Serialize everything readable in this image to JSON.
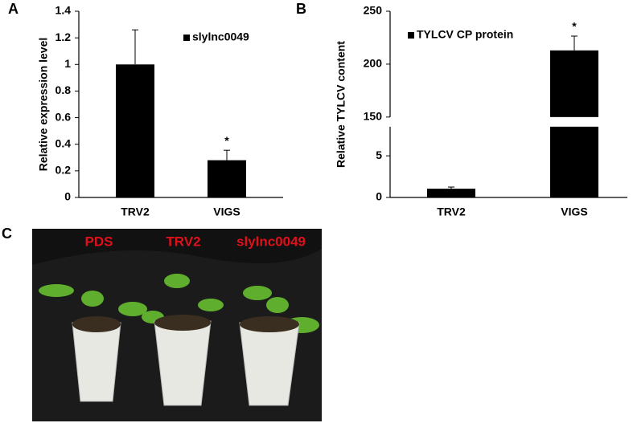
{
  "chart_data": [
    {
      "type": "bar",
      "panel_label": "A",
      "ylabel": "Relative expression level",
      "categories": [
        "TRV2",
        "VIGS"
      ],
      "series": [
        {
          "name": "slylnc0049",
          "color": "#000000",
          "values": [
            1.0,
            0.28
          ],
          "errors": [
            0.26,
            0.075
          ]
        }
      ],
      "ylim": [
        0,
        1.4
      ],
      "yticks": [
        0,
        0.2,
        0.4,
        0.6,
        0.8,
        1,
        1.2,
        1.4
      ],
      "legend": "upper-right",
      "annotations": [
        {
          "text": "*",
          "category_index": 1
        }
      ]
    },
    {
      "type": "bar",
      "panel_label": "B",
      "ylabel": "Relative TYLCV content",
      "categories": [
        "TRV2",
        "VIGS"
      ],
      "series": [
        {
          "name": "TYLCV CP protein",
          "color": "#000000",
          "values": [
            1.05,
            213
          ],
          "errors": [
            0.2,
            13.5
          ]
        }
      ],
      "y_segments": [
        {
          "ylim": [
            0,
            8.5
          ],
          "yticks": [
            0,
            5
          ]
        },
        {
          "ylim": [
            150,
            250
          ],
          "yticks": [
            150,
            200,
            250
          ]
        }
      ],
      "legend": "upper-left",
      "annotations": [
        {
          "text": "*",
          "category_index": 1
        }
      ]
    }
  ],
  "panel_c": {
    "panel_label": "C",
    "labels": [
      "PDS",
      "TRV2",
      "slylnc0049"
    ]
  }
}
